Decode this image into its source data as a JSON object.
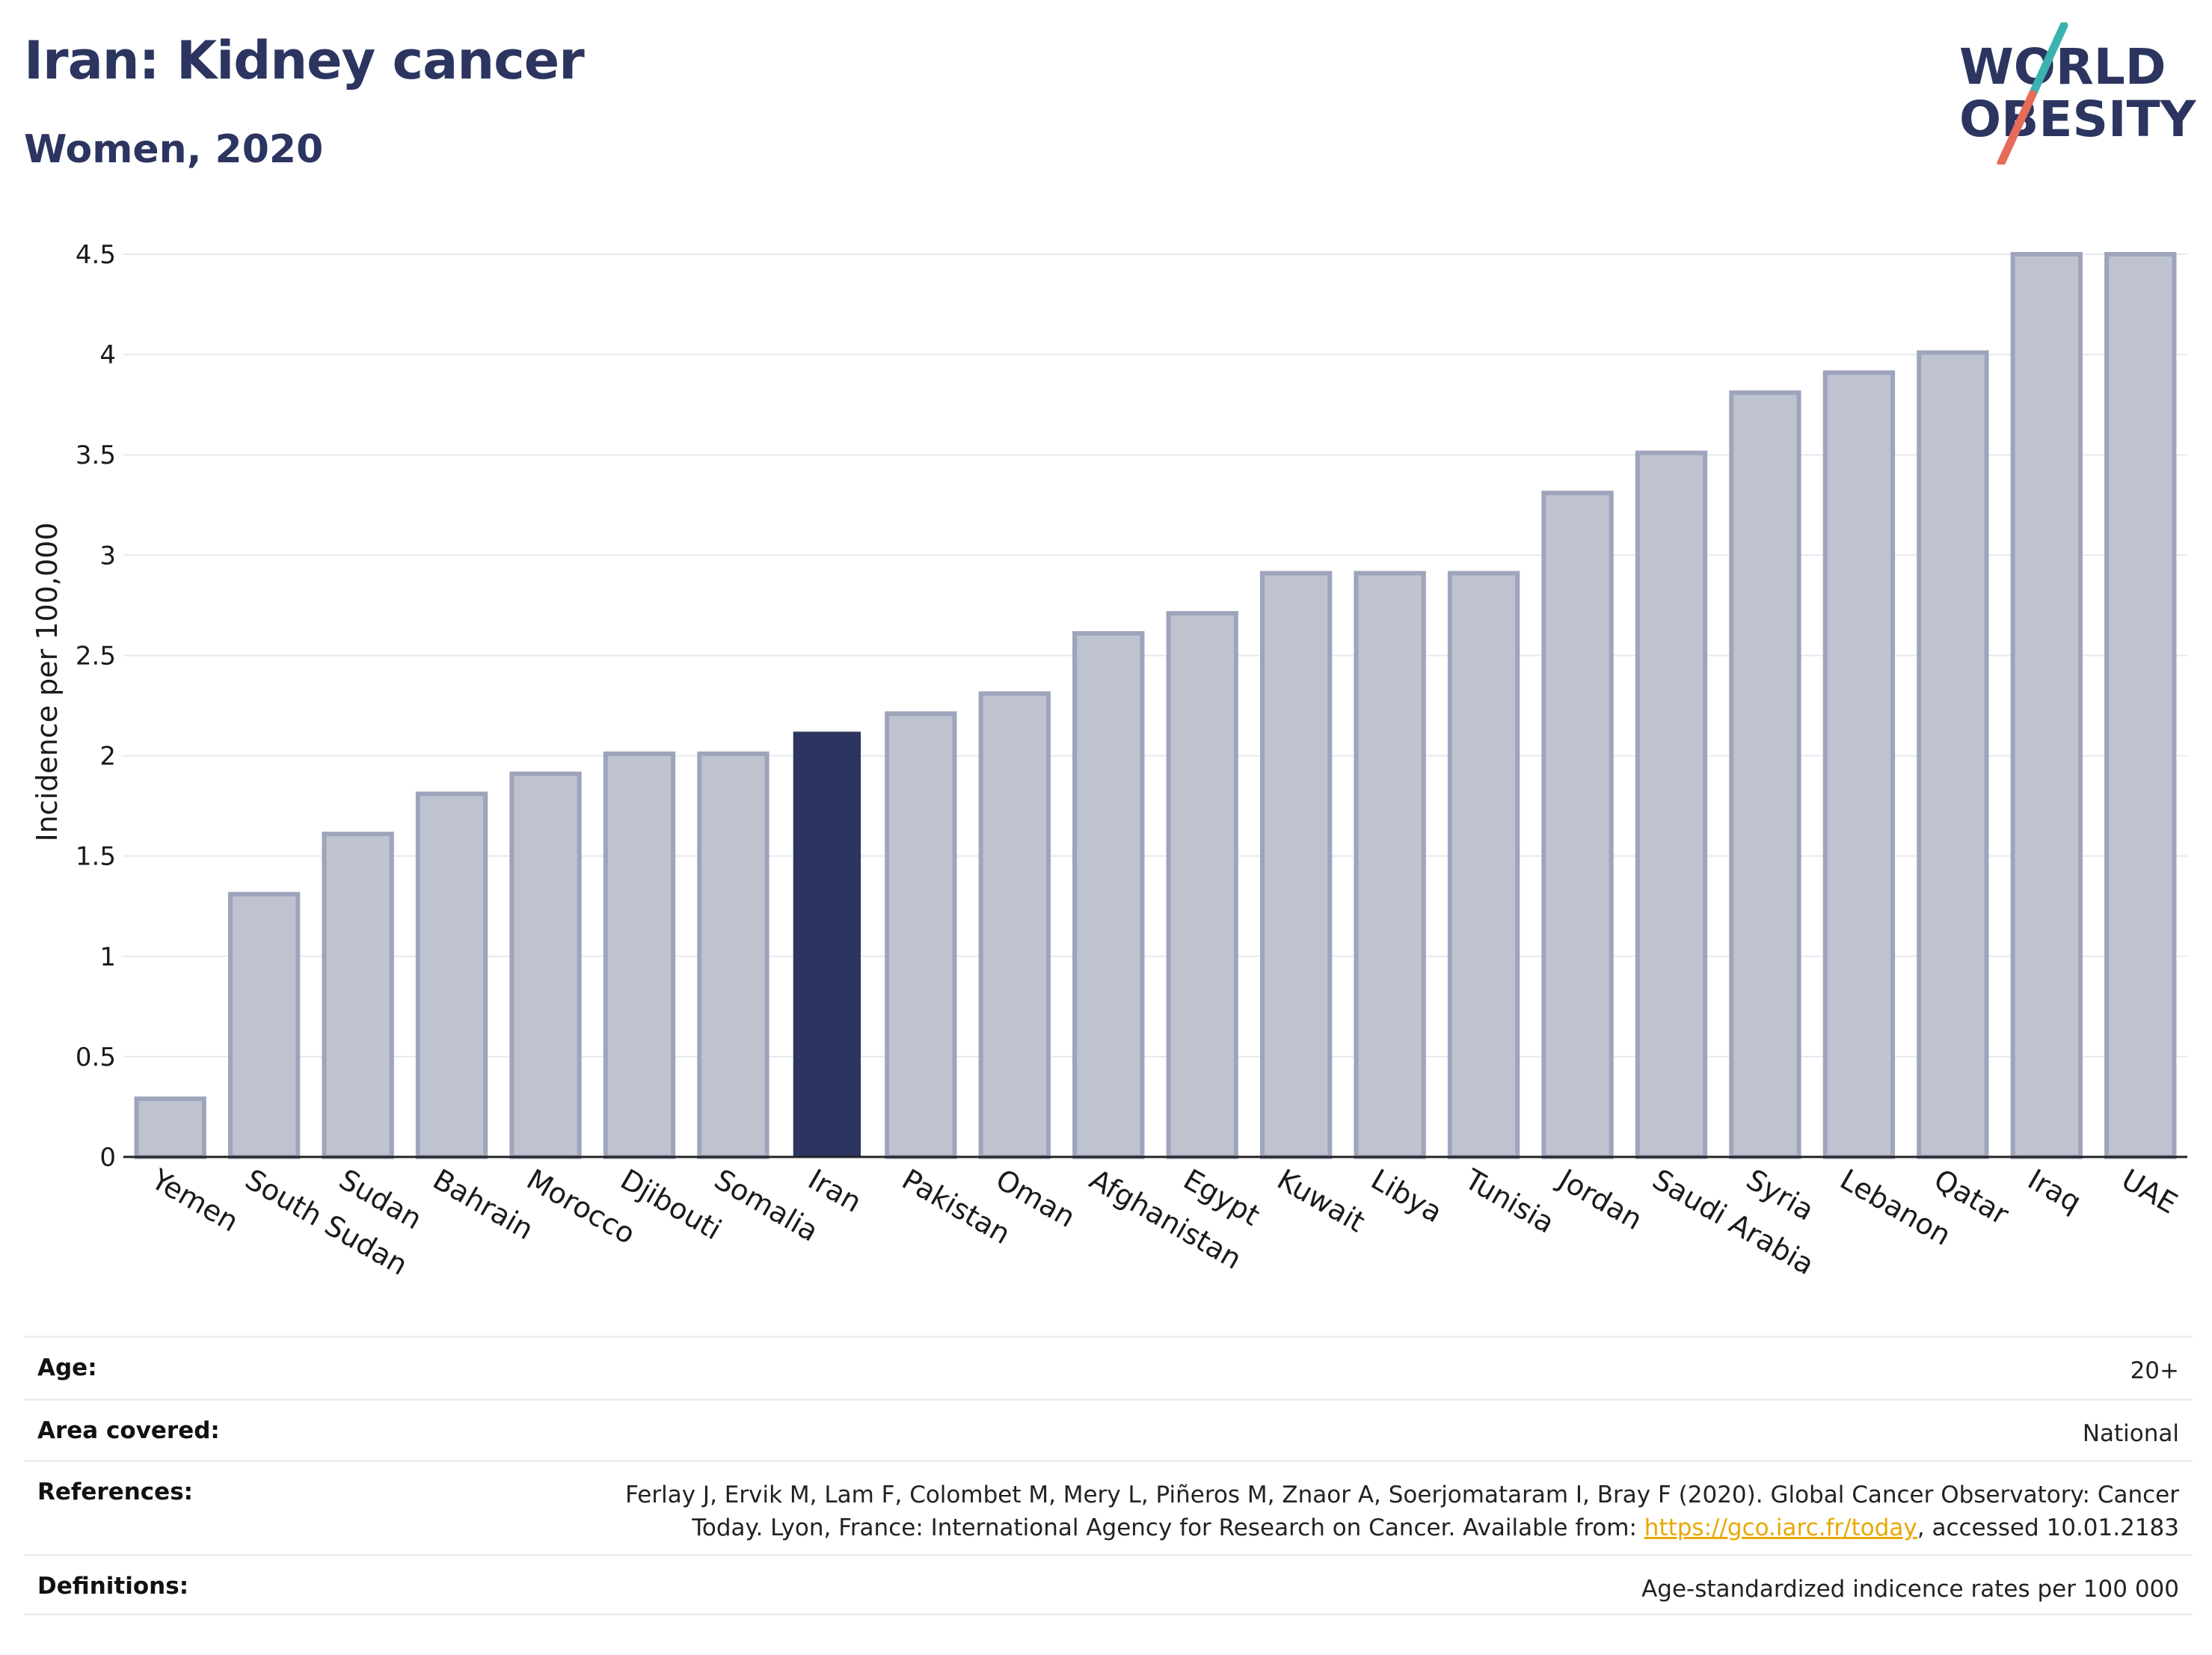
{
  "header": {
    "title": "Iran: Kidney cancer",
    "subtitle": "Women, 2020"
  },
  "logo": {
    "line1": "WORLD",
    "line2": "OBESITY",
    "colors": {
      "navy": "#2c3560",
      "teal": "#3ab3b0",
      "coral": "#e76a5a"
    }
  },
  "colors": {
    "highlight_bar": "#2c3560",
    "other_bar_fill": "#bfc3d0",
    "other_bar_stroke": "#9ea4bb",
    "link": "#e8a800"
  },
  "chart_data": {
    "type": "bar",
    "ylabel": "Incidence per 100,000",
    "ylim": [
      0,
      4.5
    ],
    "yticks": [
      "0",
      "0.5",
      "1",
      "1.5",
      "2",
      "2.5",
      "3",
      "3.5",
      "4",
      "4.5"
    ],
    "grid": true,
    "highlight": "Iran",
    "categories": [
      "Yemen",
      "South Sudan",
      "Sudan",
      "Bahrain",
      "Morocco",
      "Djibouti",
      "Somalia",
      "Iran",
      "Pakistan",
      "Oman",
      "Afghanistan",
      "Egypt",
      "Kuwait",
      "Libya",
      "Tunisia",
      "Jordan",
      "Saudi Arabia",
      "Syria",
      "Lebanon",
      "Qatar",
      "Iraq",
      "UAE"
    ],
    "values": [
      0.29,
      1.31,
      1.61,
      1.81,
      1.91,
      2.01,
      2.01,
      2.12,
      2.21,
      2.31,
      2.61,
      2.71,
      2.91,
      2.91,
      2.91,
      3.31,
      3.51,
      3.81,
      3.91,
      4.01,
      4.5,
      4.5
    ]
  },
  "meta": {
    "age_label": "Age:",
    "age_value": "20+",
    "area_label": "Area covered:",
    "area_value": "National",
    "references_label": "References:",
    "references_line1": "Ferlay J, Ervik M, Lam F, Colombet M, Mery L, Piñeros M, Znaor A, Soerjomataram I, Bray F (2020). Global Cancer Observatory: Cancer",
    "references_line2_pre": "Today. Lyon, France: International Agency for Research on Cancer. Available from: ",
    "references_link": "https://gco.iarc.fr/today",
    "references_line2_post": ", accessed 10.01.2183",
    "definitions_label": "Definitions:",
    "definitions_value": "Age-standardized indicence rates per 100 000"
  }
}
